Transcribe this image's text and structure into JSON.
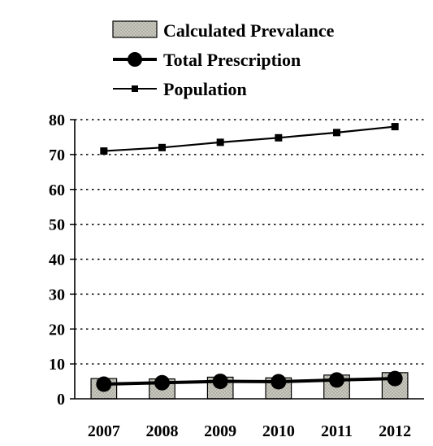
{
  "chart_data": {
    "type": "bar+line",
    "categories": [
      "2007",
      "2008",
      "2009",
      "2010",
      "2011",
      "2012"
    ],
    "ylim": [
      0,
      80
    ],
    "yticks": [
      "0",
      "10",
      "20",
      "30",
      "40",
      "50",
      "60",
      "70",
      "80"
    ],
    "grid": "horizontal dotted",
    "legend_position": "top",
    "series": [
      {
        "name": "Calculated Prevalance",
        "kind": "bar",
        "pattern": "dotted-gray",
        "values": [
          5.8,
          5.7,
          6.2,
          6.0,
          6.8,
          7.5
        ]
      },
      {
        "name": "Total Prescription",
        "kind": "line",
        "marker": "circle",
        "values": [
          4.2,
          4.6,
          5.0,
          4.9,
          5.4,
          5.8
        ]
      },
      {
        "name": "Population",
        "kind": "line",
        "marker": "square",
        "values": [
          71.0,
          72.0,
          73.5,
          74.8,
          76.3,
          78.0
        ]
      }
    ]
  }
}
